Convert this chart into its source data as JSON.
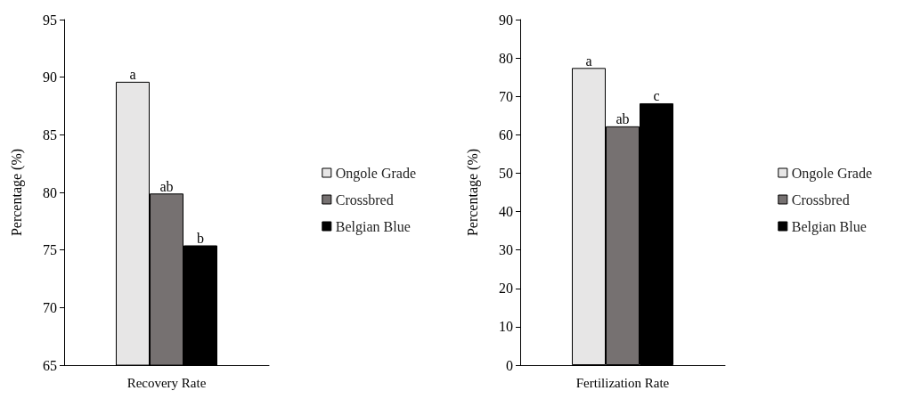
{
  "chart_data": [
    {
      "type": "bar",
      "categories": [
        "Recovery Rate"
      ],
      "ylabel": "Percentage (%)",
      "ylim": [
        65,
        95
      ],
      "yticks": [
        65,
        70,
        75,
        80,
        85,
        90,
        95
      ],
      "grid": false,
      "legend": "right",
      "series": [
        {
          "name": "Ongole Grade",
          "color": "#e7e6e6",
          "values": [
            89.6
          ],
          "value_labels": [
            "a"
          ]
        },
        {
          "name": "Crossbred",
          "color": "#767171",
          "values": [
            79.9
          ],
          "value_labels": [
            "ab"
          ]
        },
        {
          "name": "Belgian Blue",
          "color": "#000000",
          "values": [
            75.4
          ],
          "value_labels": [
            "b"
          ]
        }
      ]
    },
    {
      "type": "bar",
      "categories": [
        "Fertilization Rate"
      ],
      "ylabel": "Percentage (%)",
      "ylim": [
        0,
        90
      ],
      "yticks": [
        0,
        10,
        20,
        30,
        40,
        50,
        60,
        70,
        80,
        90
      ],
      "grid": false,
      "legend": "right",
      "series": [
        {
          "name": "Ongole Grade",
          "color": "#e7e6e6",
          "values": [
            77.4
          ],
          "value_labels": [
            "a"
          ]
        },
        {
          "name": "Crossbred",
          "color": "#767171",
          "values": [
            62.2
          ],
          "value_labels": [
            "ab"
          ]
        },
        {
          "name": "Belgian Blue",
          "color": "#000000",
          "values": [
            68.2
          ],
          "value_labels": [
            "c"
          ]
        }
      ]
    }
  ]
}
